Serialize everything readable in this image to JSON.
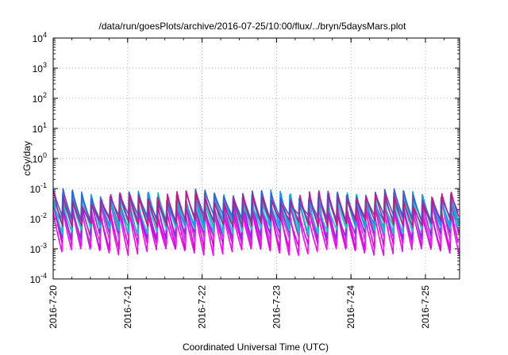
{
  "chart_data": {
    "type": "line",
    "title": "/data/run/goesPlots/archive/2016-07-25/10:00/flux/../bryn/5daysMars.plot",
    "xlabel": "Coordinated Universal Time (UTC)",
    "ylabel": "cGy/day",
    "y_scale": "log",
    "ylim": [
      0.0001,
      10000
    ],
    "xlim": [
      "2016-07-20 00:00",
      "2016-07-25 11:00"
    ],
    "x_ticks": [
      "2016-7-20",
      "2016-7-21",
      "2016-7-22",
      "2016-7-23",
      "2016-7-24",
      "2016-7-25"
    ],
    "y_ticks": [
      {
        "base": "10",
        "exp": "-4"
      },
      {
        "base": "10",
        "exp": "-3"
      },
      {
        "base": "10",
        "exp": "-2"
      },
      {
        "base": "10",
        "exp": "-1"
      },
      {
        "base": "10",
        "exp": "0"
      },
      {
        "base": "10",
        "exp": "1"
      },
      {
        "base": "10",
        "exp": "2"
      },
      {
        "base": "10",
        "exp": "3"
      },
      {
        "base": "10",
        "exp": "4"
      }
    ],
    "grid": true,
    "legend": "none",
    "series": [
      {
        "color": "#ff00ff",
        "peak": 0.018,
        "trough": 0.0008
      },
      {
        "color": "#e000e0",
        "peak": 0.022,
        "trough": 0.0012
      },
      {
        "color": "#c83cdc",
        "peak": 0.028,
        "trough": 0.0018
      },
      {
        "color": "#8a2be2",
        "peak": 0.035,
        "trough": 0.0028
      },
      {
        "color": "#00ced1",
        "peak": 0.042,
        "trough": 0.004
      },
      {
        "color": "#20b2aa",
        "peak": 0.05,
        "trough": 0.006
      },
      {
        "color": "#1e90ff",
        "peak": 0.058,
        "trough": 0.008
      },
      {
        "color": "#3a5fcd",
        "peak": 0.065,
        "trough": 0.011
      },
      {
        "color": "#c71585",
        "peak": 0.055,
        "trough": 0.007
      }
    ]
  }
}
